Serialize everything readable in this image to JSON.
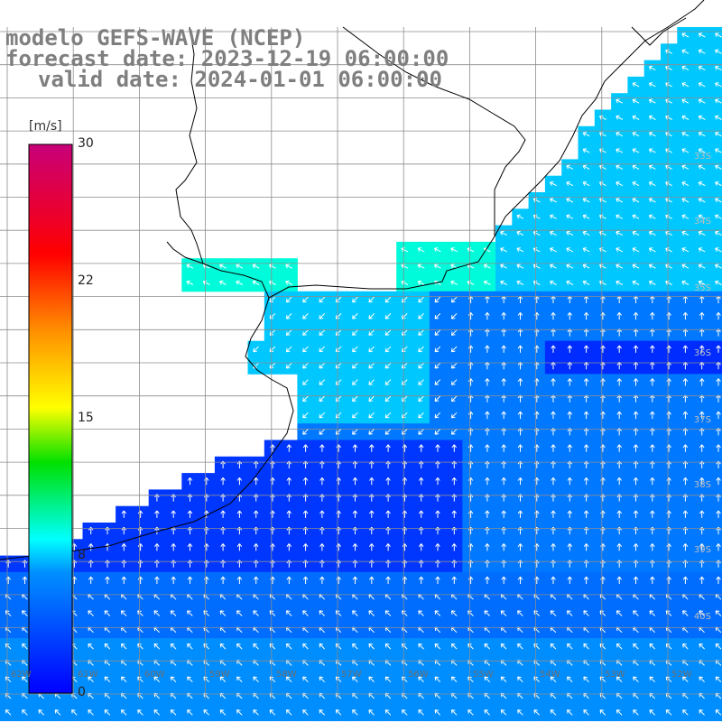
{
  "titles": {
    "model": "modelo GEFS-WAVE (NCEP)",
    "forecast": "forecast date: 2023-12-19 06:00:00",
    "valid": "valid date: 2024-01-01 06:00:00"
  },
  "legend": {
    "unit": "[m/s]",
    "ticks": [
      "30",
      "22",
      "15",
      "8",
      "0"
    ],
    "range": [
      0,
      30
    ]
  },
  "lat_labels": [
    "33S",
    "34S",
    "35S",
    "36S",
    "37S",
    "38S",
    "39S",
    "40S"
  ],
  "lon_labels": [
    "62W",
    "61W",
    "60W",
    "59W",
    "58W",
    "57W",
    "56W",
    "55W",
    "54W",
    "53W",
    "52W"
  ],
  "colors": {
    "land": "#ffffff",
    "coast": "#000000",
    "grid": "#8c8c8c",
    "arrow": "#ffffff",
    "title_text": "#7f7f7f",
    "colorbar": [
      "#0000ff",
      "#0080ff",
      "#00ffff",
      "#00ff00",
      "#ffff00",
      "#ff8000",
      "#ff0000",
      "#cc0080"
    ]
  },
  "wind_field_description_note": ""
}
